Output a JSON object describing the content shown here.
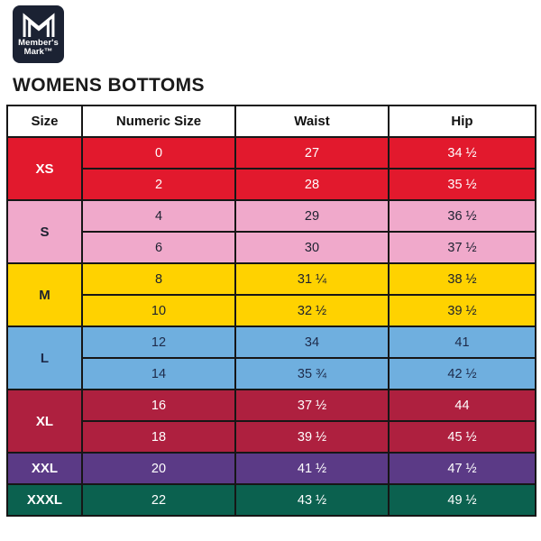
{
  "logo": {
    "name": "members-mark-logo",
    "line1": "Member's",
    "line2": "Mark™",
    "background": "#1B2233",
    "foreground": "#FFFFFF"
  },
  "title": "WOMENS BOTTOMS",
  "table": {
    "columns": [
      "Size",
      "Numeric Size",
      "Waist",
      "Hip"
    ],
    "header_bg": "#FFFFFF",
    "header_fg": "#121212",
    "groups": [
      {
        "size": "XS",
        "bg": "#E2192D",
        "fg": "#FFFFFF",
        "rows": [
          [
            "0",
            "27",
            "34 ½"
          ],
          [
            "2",
            "28",
            "35 ½"
          ]
        ]
      },
      {
        "size": "S",
        "bg": "#F0A9CB",
        "fg": "#1C2130",
        "rows": [
          [
            "4",
            "29",
            "36 ½"
          ],
          [
            "6",
            "30",
            "37 ½"
          ]
        ]
      },
      {
        "size": "M",
        "bg": "#FFD200",
        "fg": "#1C2130",
        "rows": [
          [
            "8",
            "31 ¼",
            "38 ½"
          ],
          [
            "10",
            "32 ½",
            "39 ½"
          ]
        ]
      },
      {
        "size": "L",
        "bg": "#6FAFDF",
        "fg": "#1E2B4A",
        "rows": [
          [
            "12",
            "34",
            "41"
          ],
          [
            "14",
            "35 ¾",
            "42 ½"
          ]
        ]
      },
      {
        "size": "XL",
        "bg": "#AE203F",
        "fg": "#FFFFFF",
        "rows": [
          [
            "16",
            "37 ½",
            "44"
          ],
          [
            "18",
            "39 ½",
            "45 ½"
          ]
        ]
      },
      {
        "size": "XXL",
        "bg": "#5B3A86",
        "fg": "#FFFFFF",
        "rows": [
          [
            "20",
            "41 ½",
            "47 ½"
          ]
        ]
      },
      {
        "size": "XXXL",
        "bg": "#0B614F",
        "fg": "#FFFFFF",
        "rows": [
          [
            "22",
            "43 ½",
            "49 ½"
          ]
        ]
      }
    ]
  },
  "chart_data": {
    "type": "table",
    "title": "WOMENS BOTTOMS",
    "columns": [
      "Size",
      "Numeric Size",
      "Waist",
      "Hip"
    ],
    "rows": [
      [
        "XS",
        "0",
        "27",
        "34 ½"
      ],
      [
        "XS",
        "2",
        "28",
        "35 ½"
      ],
      [
        "S",
        "4",
        "29",
        "36 ½"
      ],
      [
        "S",
        "6",
        "30",
        "37 ½"
      ],
      [
        "M",
        "8",
        "31 ¼",
        "38 ½"
      ],
      [
        "M",
        "10",
        "32 ½",
        "39 ½"
      ],
      [
        "L",
        "12",
        "34",
        "41"
      ],
      [
        "L",
        "14",
        "35 ¾",
        "42 ½"
      ],
      [
        "XL",
        "16",
        "37 ½",
        "44"
      ],
      [
        "XL",
        "18",
        "39 ½",
        "45 ½"
      ],
      [
        "XXL",
        "20",
        "41 ½",
        "47 ½"
      ],
      [
        "XXXL",
        "22",
        "43 ½",
        "49 ½"
      ]
    ]
  }
}
